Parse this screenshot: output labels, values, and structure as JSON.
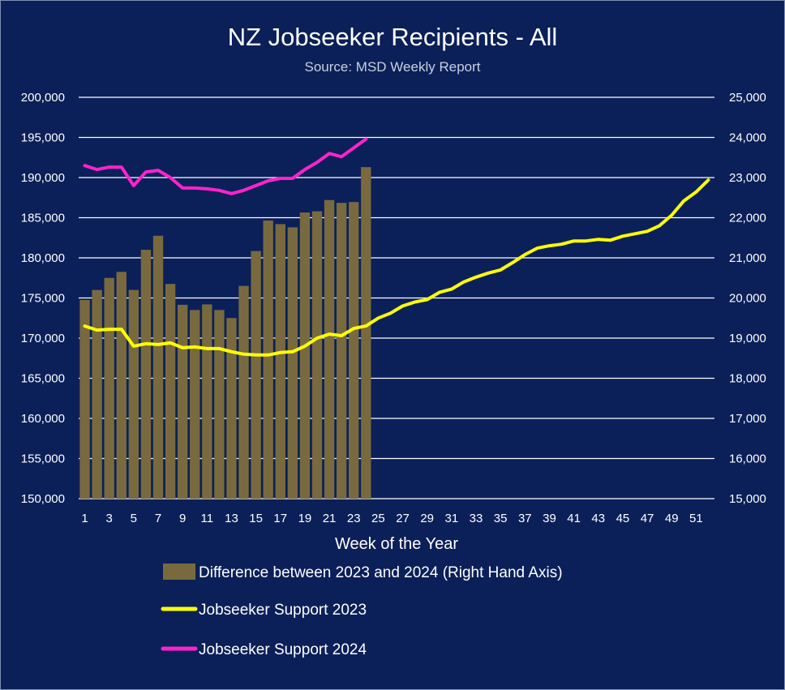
{
  "chart_data": {
    "type": "bar",
    "title": "NZ Jobseeker Recipients - All",
    "subtitle": "Source: MSD Weekly Report",
    "xlabel": "Week of the Year",
    "x_ticks": [
      "1",
      "3",
      "5",
      "7",
      "9",
      "11",
      "13",
      "15",
      "17",
      "19",
      "21",
      "23",
      "25",
      "27",
      "29",
      "31",
      "33",
      "35",
      "37",
      "39",
      "41",
      "43",
      "45",
      "47",
      "49",
      "51"
    ],
    "left_ticks": [
      "150,000",
      "155,000",
      "160,000",
      "165,000",
      "170,000",
      "175,000",
      "180,000",
      "185,000",
      "190,000",
      "195,000",
      "200,000"
    ],
    "right_ticks": [
      "15,000",
      "16,000",
      "17,000",
      "18,000",
      "19,000",
      "20,000",
      "21,000",
      "22,000",
      "23,000",
      "24,000",
      "25,000"
    ],
    "ylim_left": [
      150000,
      200000
    ],
    "ylim_right": [
      15000,
      25000
    ],
    "weeks": 52,
    "grid": true,
    "legend_position": "bottom",
    "colors": {
      "background": "#0b2059",
      "bars": "#786a3e",
      "line2023": "#ffff00",
      "line2024": "#ff22cc",
      "grid": "#ffffff"
    },
    "series": [
      {
        "name": "Difference between 2023 and 2024 (Right Hand Axis)",
        "kind": "bar",
        "axis": "right",
        "values": [
          19950,
          20200,
          20500,
          20650,
          20200,
          21200,
          21550,
          20350,
          19830,
          19700,
          19840,
          19700,
          19500,
          20300,
          21170,
          21930,
          21840,
          21760,
          22130,
          22160,
          22440,
          22370,
          22390,
          23260
        ]
      },
      {
        "name": "Jobseeker Support 2023",
        "kind": "line",
        "axis": "left",
        "values": [
          171500,
          171000,
          171100,
          171100,
          169000,
          169300,
          169200,
          169400,
          168800,
          168900,
          168700,
          168700,
          168300,
          168000,
          167900,
          167900,
          168200,
          168300,
          169000,
          170000,
          170500,
          170300,
          171200,
          171500,
          172500,
          173100,
          174000,
          174500,
          174800,
          175700,
          176100,
          177000,
          177600,
          178100,
          178500,
          179400,
          180400,
          181200,
          181500,
          181700,
          182100,
          182100,
          182300,
          182200,
          182700,
          183000,
          183300,
          184000,
          185300,
          187100,
          188200,
          189700
        ]
      },
      {
        "name": "Jobseeker Support 2024",
        "kind": "line",
        "axis": "left",
        "values": [
          191500,
          191000,
          191300,
          191300,
          189000,
          190700,
          190900,
          190000,
          188700,
          188700,
          188600,
          188400,
          188000,
          188400,
          189000,
          189600,
          189900,
          189900,
          191000,
          191900,
          193000,
          192600,
          193700,
          194800
        ]
      }
    ]
  }
}
